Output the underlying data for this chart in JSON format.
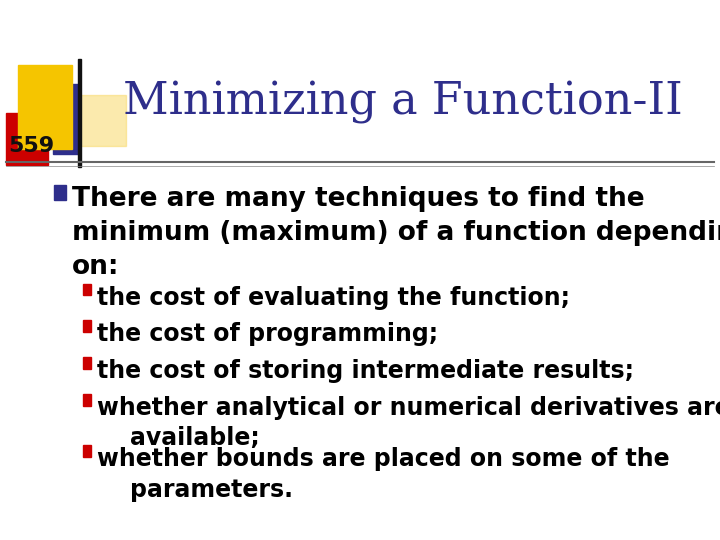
{
  "title": "Minimizing a Function-II",
  "slide_number": "559",
  "background_color": "#ffffff",
  "title_color": "#2e2e8b",
  "title_fontsize": 32,
  "slide_num_fontsize": 16,
  "bullet_color": "#2e2e8b",
  "sub_bullet_color": "#cc0000",
  "text_color": "#000000",
  "main_bullet_text": "There are many techniques to find the\nminimum (maximum) of a function depending\non:",
  "sub_bullets": [
    "the cost of evaluating the function;",
    "the cost of programming;",
    "the cost of storing intermediate results;",
    "whether analytical or numerical derivatives are\n    available;",
    "whether bounds are placed on some of the\n    parameters."
  ],
  "dec_yellow": "#f5c500",
  "dec_red": "#cc0000",
  "dec_blue": "#2e2e8b",
  "main_bullet_fontsize": 19,
  "sub_bullet_fontsize": 17
}
